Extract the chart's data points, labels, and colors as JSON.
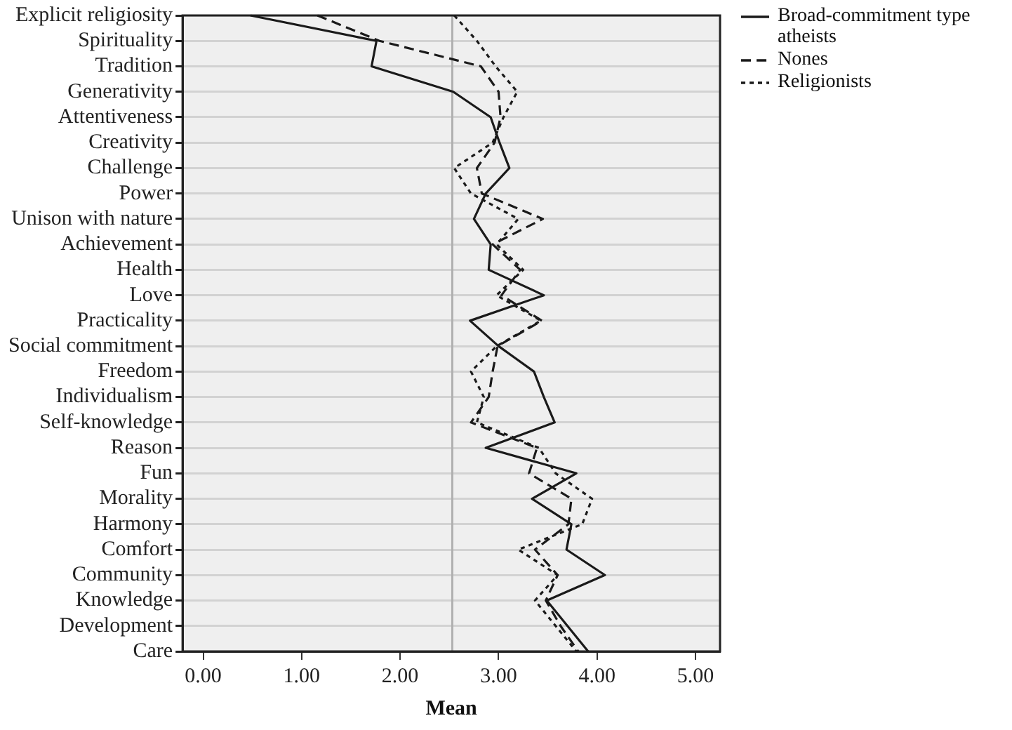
{
  "chart_data": {
    "type": "line",
    "orientation": "horizontal",
    "xlabel": "Mean",
    "categories": [
      "Explicit religiosity",
      "Spirituality",
      "Tradition",
      "Generativity",
      "Attentiveness",
      "Creativity",
      "Challenge",
      "Power",
      "Unison with nature",
      "Achievement",
      "Health",
      "Love",
      "Practicality",
      "Social commitment",
      "Freedom",
      "Individualism",
      "Self-knowledge",
      "Reason",
      "Fun",
      "Morality",
      "Harmony",
      "Comfort",
      "Community",
      "Knowledge",
      "Development",
      "Care"
    ],
    "series": [
      {
        "name": "Broad-commitment type atheists",
        "color": "#1a1a1a",
        "line_style": "solid",
        "values": [
          0.48,
          1.76,
          1.71,
          2.54,
          2.92,
          3.01,
          3.11,
          2.87,
          2.75,
          2.92,
          2.9,
          3.46,
          2.71,
          3.0,
          3.36,
          3.46,
          3.57,
          2.87,
          3.79,
          3.34,
          3.74,
          3.69,
          4.08,
          3.49,
          3.7,
          3.91
        ]
      },
      {
        "name": "Nones",
        "color": "#1a1a1a",
        "line_style": "dashed",
        "values": [
          1.16,
          1.79,
          2.82,
          3.0,
          3.02,
          2.96,
          2.78,
          2.83,
          3.45,
          2.94,
          3.22,
          3.03,
          3.44,
          2.99,
          2.94,
          2.9,
          2.72,
          3.39,
          3.31,
          3.74,
          3.71,
          3.37,
          3.6,
          3.48,
          3.63,
          3.81
        ]
      },
      {
        "name": "Religionists",
        "color": "#1a1a1a",
        "line_style": "dotted",
        "values": [
          2.55,
          2.78,
          2.97,
          3.19,
          3.05,
          2.94,
          2.55,
          2.72,
          3.2,
          2.98,
          3.25,
          2.98,
          3.43,
          2.98,
          2.72,
          2.85,
          2.78,
          3.41,
          3.58,
          3.95,
          3.85,
          3.2,
          3.6,
          3.37,
          3.58,
          3.79
        ]
      }
    ],
    "xlim": [
      -0.21,
      5.25
    ],
    "xticks": [
      {
        "value": 0,
        "label": "0.00"
      },
      {
        "value": 1,
        "label": "1.00"
      },
      {
        "value": 2,
        "label": "2.00"
      },
      {
        "value": 3,
        "label": "3.00"
      },
      {
        "value": 4,
        "label": "4.00"
      },
      {
        "value": 5,
        "label": "5.00"
      }
    ],
    "ref_lines": [
      {
        "axis": "x",
        "value": 2.53,
        "color": "#b0b0b0"
      }
    ],
    "grid": "y",
    "legend": "top right",
    "marker": "none"
  }
}
